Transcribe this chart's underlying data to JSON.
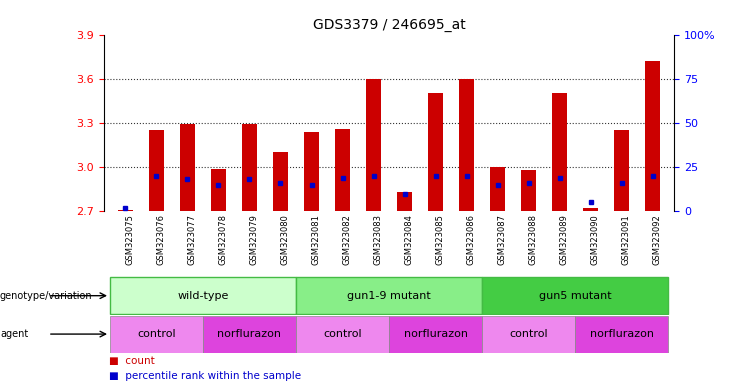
{
  "title": "GDS3379 / 246695_at",
  "samples": [
    "GSM323075",
    "GSM323076",
    "GSM323077",
    "GSM323078",
    "GSM323079",
    "GSM323080",
    "GSM323081",
    "GSM323082",
    "GSM323083",
    "GSM323084",
    "GSM323085",
    "GSM323086",
    "GSM323087",
    "GSM323088",
    "GSM323089",
    "GSM323090",
    "GSM323091",
    "GSM323092"
  ],
  "counts": [
    2.71,
    3.25,
    3.29,
    2.99,
    3.29,
    3.1,
    3.24,
    3.26,
    3.6,
    2.83,
    3.5,
    3.6,
    3.0,
    2.98,
    3.5,
    2.72,
    3.25,
    3.72
  ],
  "percentile_values": [
    2,
    20,
    18,
    15,
    18,
    16,
    15,
    19,
    20,
    10,
    20,
    20,
    15,
    16,
    19,
    5,
    16,
    20
  ],
  "ylim": [
    2.7,
    3.9
  ],
  "y_left_ticks": [
    2.7,
    3.0,
    3.3,
    3.6,
    3.9
  ],
  "y_right_ticks": [
    0,
    25,
    50,
    75,
    100
  ],
  "bar_color": "#cc0000",
  "dot_color": "#0000cc",
  "bar_width": 0.5,
  "base_value": 2.7,
  "genotype_groups": [
    {
      "label": "wild-type",
      "start": 0,
      "end": 5,
      "bg": "#ccffcc",
      "border": "#44bb44"
    },
    {
      "label": "gun1-9 mutant",
      "start": 6,
      "end": 11,
      "bg": "#88ee88",
      "border": "#44bb44"
    },
    {
      "label": "gun5 mutant",
      "start": 12,
      "end": 17,
      "bg": "#44cc44",
      "border": "#44bb44"
    }
  ],
  "agent_groups": [
    {
      "label": "control",
      "start": 0,
      "end": 2,
      "bg": "#ee88ee"
    },
    {
      "label": "norflurazon",
      "start": 3,
      "end": 5,
      "bg": "#dd44dd"
    },
    {
      "label": "control",
      "start": 6,
      "end": 8,
      "bg": "#ee88ee"
    },
    {
      "label": "norflurazon",
      "start": 9,
      "end": 11,
      "bg": "#dd44dd"
    },
    {
      "label": "control",
      "start": 12,
      "end": 14,
      "bg": "#ee88ee"
    },
    {
      "label": "norflurazon",
      "start": 15,
      "end": 17,
      "bg": "#dd44dd"
    }
  ],
  "legend_count_color": "#cc0000",
  "legend_dot_color": "#0000cc"
}
